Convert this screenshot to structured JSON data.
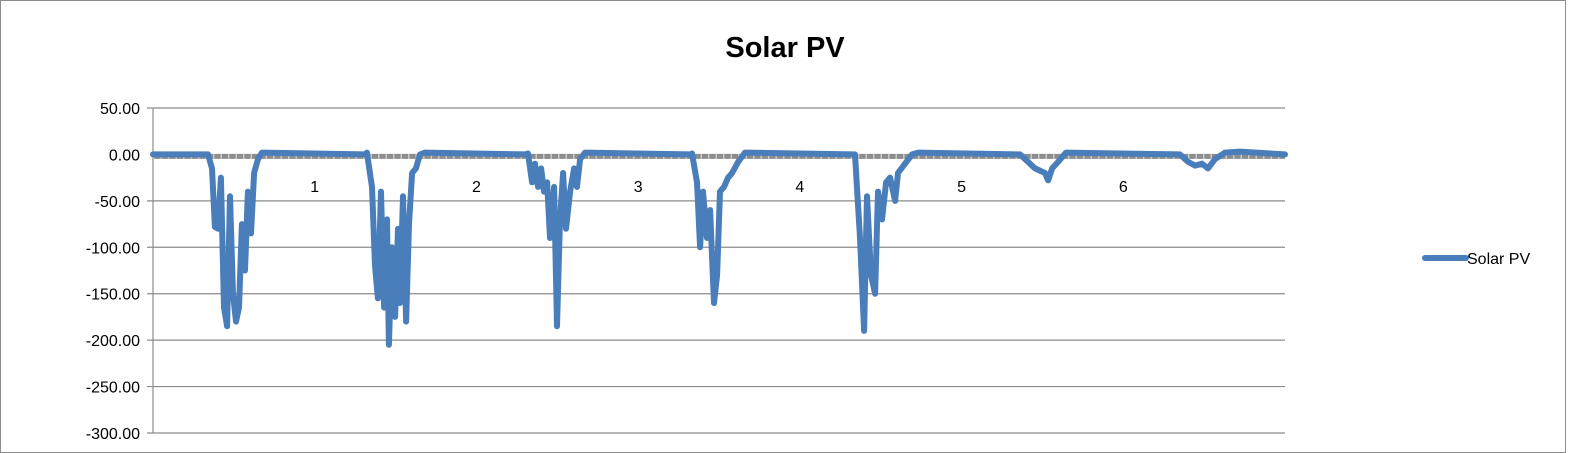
{
  "chart_data": {
    "type": "line",
    "title": "Solar PV",
    "xlabel": "",
    "ylabel": "",
    "ylim": [
      -300,
      50
    ],
    "xlim": [
      0,
      7
    ],
    "yticks": [
      50,
      0,
      -50,
      -100,
      -150,
      -200,
      -250,
      -300
    ],
    "ytick_labels": [
      "50.00",
      "0.00",
      "-50.00",
      "-100.00",
      "-150.00",
      "-200.00",
      "-250.00",
      "-300.00"
    ],
    "xtick_labels": [
      "1",
      "2",
      "3",
      "4",
      "5",
      "6"
    ],
    "xtick_positions": [
      1,
      2,
      3,
      4,
      5,
      6
    ],
    "grid": true,
    "legend": "right",
    "series": [
      {
        "name": "Solar PV",
        "color": "#4A7EBB",
        "x": [
          0,
          0.34,
          0.365,
          0.383,
          0.402,
          0.42,
          0.439,
          0.458,
          0.476,
          0.495,
          0.513,
          0.532,
          0.55,
          0.569,
          0.587,
          0.606,
          0.625,
          0.649,
          0.674,
          1.311,
          1.323,
          1.354,
          1.373,
          1.391,
          1.41,
          1.429,
          1.447,
          1.459,
          1.478,
          1.497,
          1.515,
          1.527,
          1.546,
          1.565,
          1.583,
          1.602,
          1.626,
          1.651,
          1.682,
          2.3,
          2.319,
          2.344,
          2.362,
          2.381,
          2.4,
          2.418,
          2.437,
          2.455,
          2.48,
          2.498,
          2.517,
          2.536,
          2.554,
          2.579,
          2.604,
          2.622,
          2.641,
          2.672,
          3.321,
          3.333,
          3.364,
          3.383,
          3.401,
          3.426,
          3.445,
          3.469,
          3.488,
          3.506,
          3.531,
          3.556,
          3.581,
          3.618,
          3.661,
          4.323,
          4.341,
          4.372,
          4.397,
          4.415,
          4.44,
          4.465,
          4.483,
          4.508,
          4.533,
          4.558,
          4.589,
          4.607,
          4.65,
          4.694,
          4.731,
          5.362,
          5.454,
          5.516,
          5.535,
          5.56,
          5.597,
          5.646,
          6.351,
          6.401,
          6.444,
          6.487,
          6.524,
          6.567,
          6.629,
          6.722,
          7.0
        ],
        "y": [
          0,
          0,
          -15,
          -78,
          -80,
          -25,
          -165,
          -185,
          -45,
          -150,
          -180,
          -165,
          -75,
          -125,
          -40,
          -85,
          -20,
          -5,
          2,
          0,
          2,
          -35,
          -120,
          -155,
          -40,
          -165,
          -70,
          -205,
          -100,
          -175,
          -80,
          -160,
          -45,
          -180,
          -75,
          -20,
          -15,
          0,
          2,
          0,
          1,
          -30,
          -10,
          -35,
          -15,
          -40,
          -30,
          -90,
          -35,
          -185,
          -70,
          -20,
          -80,
          -40,
          -15,
          -35,
          -5,
          2,
          0,
          1,
          -30,
          -100,
          -40,
          -90,
          -60,
          -160,
          -130,
          -40,
          -35,
          -25,
          -20,
          -8,
          2,
          0,
          0,
          -90,
          -190,
          -45,
          -130,
          -150,
          -40,
          -70,
          -30,
          -25,
          -50,
          -20,
          -10,
          0,
          2,
          0,
          -15,
          -20,
          -28,
          -15,
          -8,
          2,
          0,
          -8,
          -12,
          -10,
          -15,
          -5,
          2,
          3,
          0
        ]
      }
    ]
  }
}
